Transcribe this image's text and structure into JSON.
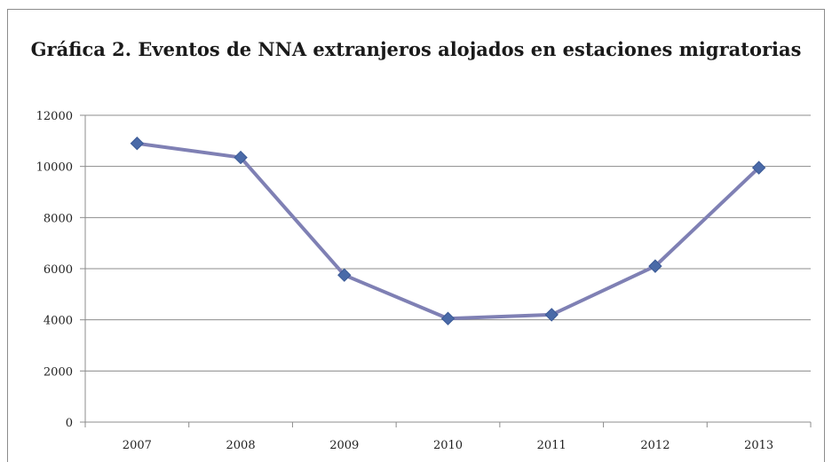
{
  "chart_data": {
    "type": "line",
    "title": "Gráfica 2. Eventos de NNA extranjeros alojados en estaciones migratorias",
    "categories": [
      "2007",
      "2008",
      "2009",
      "2010",
      "2011",
      "2012",
      "2013"
    ],
    "series": [
      {
        "values": [
          10900,
          10350,
          5750,
          4050,
          4200,
          6100,
          9950
        ]
      }
    ],
    "ylim": [
      0,
      12000
    ],
    "yticks": [
      0,
      2000,
      4000,
      6000,
      8000,
      10000,
      12000
    ],
    "grid": true,
    "legend": "none",
    "colors": {
      "line": "#7f80b4",
      "marker": "#4a6aa8",
      "grid": "#8c8c8c"
    }
  }
}
